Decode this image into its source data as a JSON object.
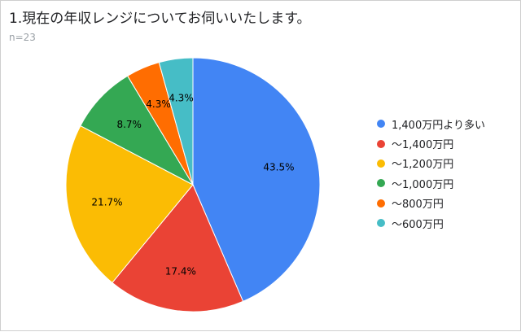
{
  "title": "1.現在の年収レンジについてお伺いいたします。",
  "subtitle": "n=23",
  "chart_data": {
    "type": "pie",
    "title": "1.現在の年収レンジについてお伺いいたします。",
    "subtitle": "n=23",
    "legend_position": "right",
    "slices": [
      {
        "label": "1,400万円より多い",
        "value": 43.5,
        "display": "43.5%",
        "color": "#4285f4"
      },
      {
        "label": "～1,400万円",
        "value": 17.4,
        "display": "17.4%",
        "color": "#ea4335"
      },
      {
        "label": "～1,200万円",
        "value": 21.7,
        "display": "21.7%",
        "color": "#fbbc04"
      },
      {
        "label": "～1,000万円",
        "value": 8.7,
        "display": "8.7%",
        "color": "#34a853"
      },
      {
        "label": "～800万円",
        "value": 4.3,
        "display": "4.3%",
        "color": "#ff6d01"
      },
      {
        "label": "～600万円",
        "value": 4.3,
        "display": "4.3%",
        "color": "#46bdc6"
      }
    ]
  }
}
